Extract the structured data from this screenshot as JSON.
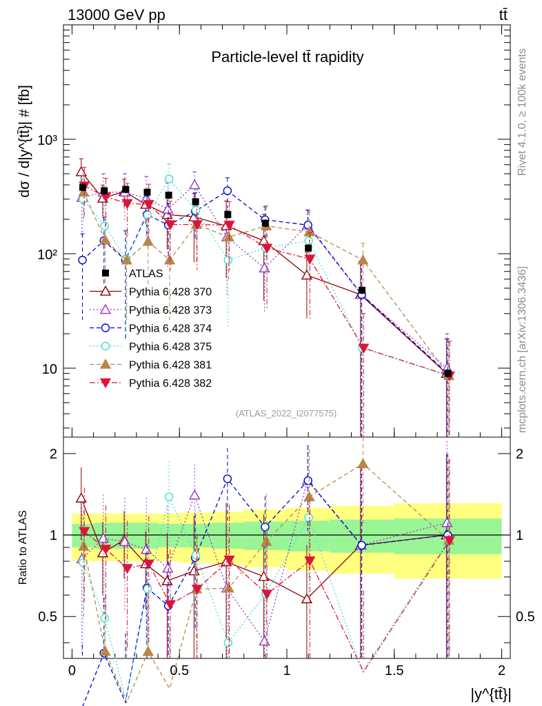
{
  "header": {
    "energy_label": "13000 GeV pp",
    "process_label": "tt̄"
  },
  "side_labels": {
    "rivet": "Rivet 4.1.0, ≥ 100k events",
    "source": "mcplots.cern.ch [arXiv:1306.3436]"
  },
  "chart_data": {
    "type": "scatter",
    "title": "Particle-level tt̄ rapidity",
    "analysis_label": "(ATLAS_2022_I2077575)",
    "ylabel": "dσ / d|y^{tt̄}| # [fb]",
    "xlabel": "|y^{tt̄}|",
    "ratio_ylabel": "Ratio to ATLAS",
    "xlim": [
      -0.04,
      2.04
    ],
    "ylim": [
      2.5,
      10000
    ],
    "ratio_ylim": [
      0.35,
      2.3
    ],
    "x_ticks": [
      {
        "value": 0,
        "label": "0"
      },
      {
        "value": 0.5,
        "label": "0.5"
      },
      {
        "value": 1,
        "label": "1"
      },
      {
        "value": 1.5,
        "label": "1.5"
      },
      {
        "value": 2,
        "label": "2"
      }
    ],
    "y_ticks": [
      {
        "value": 10,
        "label": "10"
      },
      {
        "value": 100,
        "label": "10²"
      },
      {
        "value": 1000,
        "label": "10³"
      }
    ],
    "ratio_ticks": [
      {
        "value": 0.5,
        "label": "0.5"
      },
      {
        "value": 1,
        "label": "1"
      },
      {
        "value": 2,
        "label": "2"
      }
    ],
    "bins": [
      0,
      0.1,
      0.2,
      0.3,
      0.4,
      0.5,
      0.65,
      0.8,
      1.0,
      1.2,
      1.5,
      2.0
    ],
    "x": [
      0.05,
      0.15,
      0.25,
      0.35,
      0.45,
      0.575,
      0.725,
      0.9,
      1.1,
      1.35,
      1.75
    ],
    "band_inner_frac": [
      0.1,
      0.11,
      0.11,
      0.11,
      0.1,
      0.1,
      0.11,
      0.12,
      0.13,
      0.14,
      0.15
    ],
    "band_outer_frac": [
      0.2,
      0.2,
      0.2,
      0.2,
      0.2,
      0.21,
      0.22,
      0.24,
      0.26,
      0.28,
      0.31
    ],
    "data": {
      "name": "ATLAS",
      "color": "#000000",
      "values": [
        380,
        355,
        365,
        345,
        325,
        285,
        220,
        185,
        112,
        48,
        9
      ]
    },
    "series": [
      {
        "name": "Pythia 6.428 370",
        "color": "#8b0000",
        "marker": "triangle-open",
        "dash": "solid",
        "values": [
          520,
          305,
          350,
          270,
          220,
          210,
          175,
          130,
          65,
          44,
          9
        ],
        "rel_err": [
          0.3,
          0.3,
          0.28,
          0.32,
          0.5,
          0.6,
          0.65,
          0.7,
          0.58,
          0.95,
          1.0
        ]
      },
      {
        "name": "Pythia 6.428 373",
        "color": "#9932cc",
        "marker": "triangle-open",
        "dash": "dotted",
        "values": [
          310,
          345,
          345,
          305,
          245,
          400,
          140,
          75,
          178,
          44,
          10
        ],
        "rel_err": [
          0.55,
          0.45,
          0.45,
          0.55,
          0.7,
          0.3,
          0.7,
          0.6,
          0.35,
          0.95,
          1.0
        ]
      },
      {
        "name": "Pythia 6.428 374",
        "color": "#0000cd",
        "marker": "circle-open",
        "dash": "dashed",
        "values": [
          88,
          130,
          88,
          220,
          178,
          235,
          355,
          198,
          178,
          44,
          9
        ],
        "rel_err": [
          0.7,
          0.6,
          0.8,
          0.45,
          0.55,
          0.45,
          0.3,
          0.3,
          0.35,
          0.95,
          1.0
        ]
      },
      {
        "name": "Pythia 6.428 375",
        "color": "#40e0d0",
        "marker": "circle-open",
        "dash": "dotted",
        "values": [
          300,
          175,
          90,
          218,
          450,
          240,
          88,
          112,
          130,
          15,
          8.6
        ],
        "rel_err": [
          0.5,
          0.5,
          0.8,
          0.5,
          0.35,
          0.5,
          0.75,
          0.6,
          0.5,
          1.0,
          1.0
        ]
      },
      {
        "name": "Pythia 6.428 381",
        "color": "#b8864b",
        "marker": "triangle-filled",
        "dash": "dashed",
        "values": [
          345,
          132,
          88,
          128,
          88,
          180,
          140,
          175,
          155,
          88,
          8.6
        ],
        "rel_err": [
          0.45,
          0.6,
          0.7,
          0.6,
          0.7,
          0.55,
          0.6,
          0.5,
          0.5,
          0.4,
          1.0
        ]
      },
      {
        "name": "Pythia 6.428 382",
        "color": "#dc143c",
        "marker": "triangle-down-filled",
        "dash": "dashdot",
        "values": [
          392,
          315,
          275,
          270,
          180,
          180,
          178,
          112,
          90,
          15,
          8.6
        ],
        "rel_err": [
          0.45,
          0.45,
          0.5,
          0.5,
          0.6,
          0.6,
          0.6,
          0.7,
          0.7,
          1.0,
          1.0
        ]
      }
    ]
  }
}
